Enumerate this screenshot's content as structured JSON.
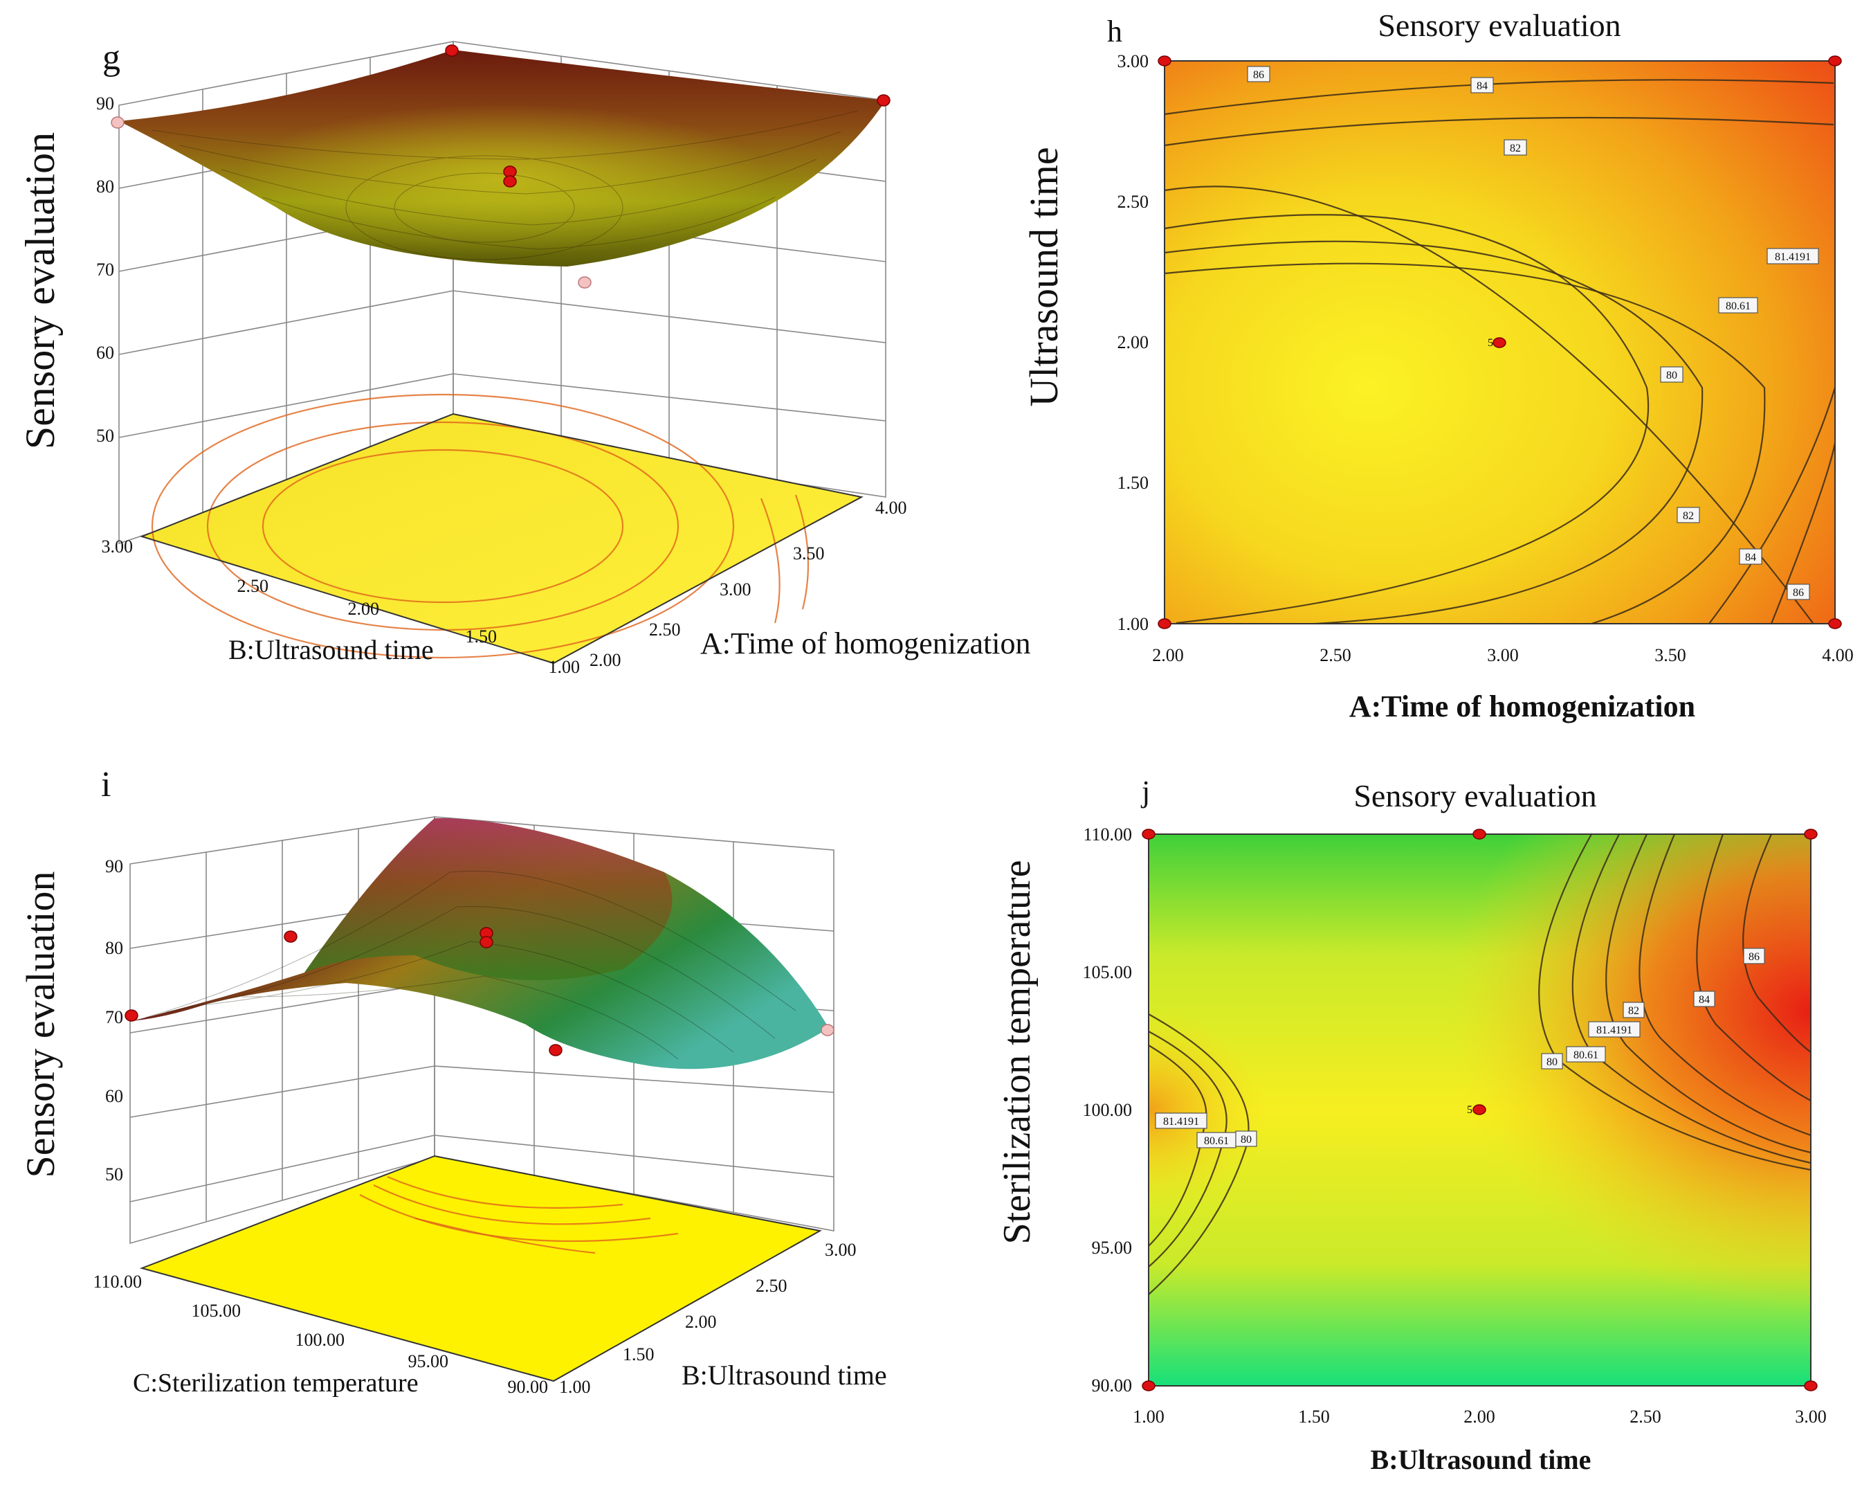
{
  "panels": {
    "g": {
      "letter": "g",
      "zlabel": "Sensory evaluation",
      "xlabel": "A:Time of homogenization",
      "ylabel": "B:Ultrasound time",
      "zticks": [
        "90",
        "80",
        "70",
        "60",
        "50"
      ],
      "xticks": [
        "2.00",
        "2.50",
        "3.00",
        "3.50",
        "4.00"
      ],
      "yticks": [
        "3.00",
        "2.50",
        "2.00",
        "1.50",
        "1.00"
      ]
    },
    "h": {
      "letter": "h",
      "title": "Sensory evaluation",
      "xlabel": "A:Time of homogenization",
      "ylabel": "Ultrasound time",
      "xticks": [
        "2.00",
        "2.50",
        "3.00",
        "3.50",
        "4.00"
      ],
      "yticks": [
        "1.00",
        "1.50",
        "2.00",
        "2.50",
        "3.00"
      ],
      "contour_labels": [
        "86",
        "84",
        "82",
        "81.4191",
        "80.61",
        "80",
        "82",
        "84",
        "86"
      ],
      "center_label": "5"
    },
    "i": {
      "letter": "i",
      "zlabel": "Sensory evaluation",
      "xlabel": "B:Ultrasound time",
      "ylabel": "C:Sterilization temperature",
      "zticks": [
        "90",
        "80",
        "70",
        "60",
        "50"
      ],
      "xticks": [
        "1.00",
        "1.50",
        "2.00",
        "2.50",
        "3.00"
      ],
      "yticks": [
        "110.00",
        "105.00",
        "100.00",
        "95.00",
        "90.00"
      ]
    },
    "j": {
      "letter": "j",
      "title": "Sensory evaluation",
      "xlabel": "B:Ultrasound time",
      "ylabel": "Sterilization temperature",
      "xticks": [
        "1.00",
        "1.50",
        "2.00",
        "2.50",
        "3.00"
      ],
      "yticks": [
        "90.00",
        "95.00",
        "100.00",
        "105.00",
        "110.00"
      ],
      "contour_labels": [
        "81.4191",
        "80.61",
        "80",
        "80",
        "80.61",
        "81.4191",
        "82",
        "84",
        "86"
      ],
      "center_label": "5"
    }
  },
  "chart_data": [
    {
      "type": "surface",
      "panel": "g",
      "x": {
        "name": "A:Time of homogenization",
        "range": [
          2.0,
          4.0
        ]
      },
      "y": {
        "name": "B:Ultrasound time",
        "range": [
          1.0,
          3.0
        ]
      },
      "z": {
        "name": "Sensory evaluation",
        "range": [
          50,
          90
        ]
      },
      "design_points": [
        {
          "A": 2.0,
          "B": 3.0,
          "z": 86
        },
        {
          "A": 4.0,
          "B": 3.0,
          "z": 93
        },
        {
          "A": 4.0,
          "B": 1.0,
          "z": 88
        },
        {
          "A": 3.0,
          "B": 2.0,
          "z": 80
        },
        {
          "A": 2.0,
          "B": 1.0,
          "z": 74
        }
      ],
      "minimum_near": {
        "A": 2.6,
        "B": 1.8,
        "z": 79
      }
    },
    {
      "type": "contour",
      "panel": "h",
      "x": {
        "name": "A:Time of homogenization",
        "range": [
          2.0,
          4.0
        ]
      },
      "y": {
        "name": "Ultrasound time",
        "range": [
          1.0,
          3.0
        ]
      },
      "levels": [
        80,
        80.61,
        81.4191,
        82,
        84,
        86
      ],
      "design_points": [
        {
          "A": 2.0,
          "B": 3.0
        },
        {
          "A": 4.0,
          "B": 3.0
        },
        {
          "A": 2.0,
          "B": 1.0
        },
        {
          "A": 4.0,
          "B": 1.0
        },
        {
          "A": 3.0,
          "B": 2.0,
          "label": "5"
        }
      ]
    },
    {
      "type": "surface",
      "panel": "i",
      "x": {
        "name": "B:Ultrasound time",
        "range": [
          1.0,
          3.0
        ]
      },
      "y": {
        "name": "C:Sterilization temperature",
        "range": [
          90.0,
          110.0
        ]
      },
      "z": {
        "name": "Sensory evaluation",
        "range": [
          50,
          90
        ]
      },
      "design_points": [
        {
          "B": 1.0,
          "C": 110.0,
          "z": 70
        },
        {
          "B": 2.0,
          "C": 110.0,
          "z": 81
        },
        {
          "B": 2.0,
          "C": 100.0,
          "z": 81
        },
        {
          "B": 3.0,
          "C": 100.0,
          "z": 74
        },
        {
          "B": 3.0,
          "C": 90.0,
          "z": 70
        }
      ],
      "maximum_near": {
        "B": 2.0,
        "C": 100.0,
        "z": 88
      }
    },
    {
      "type": "contour",
      "panel": "j",
      "x": {
        "name": "B:Ultrasound time",
        "range": [
          1.0,
          3.0
        ]
      },
      "y": {
        "name": "Sterilization temperature",
        "range": [
          90.0,
          110.0
        ]
      },
      "levels": [
        80,
        80.61,
        81.4191,
        82,
        84,
        86
      ],
      "design_points": [
        {
          "B": 1.0,
          "C": 110.0
        },
        {
          "B": 2.0,
          "C": 110.0
        },
        {
          "B": 3.0,
          "C": 110.0
        },
        {
          "B": 1.0,
          "C": 90.0
        },
        {
          "B": 3.0,
          "C": 90.0
        },
        {
          "B": 2.0,
          "C": 100.0,
          "label": "5"
        }
      ]
    }
  ]
}
